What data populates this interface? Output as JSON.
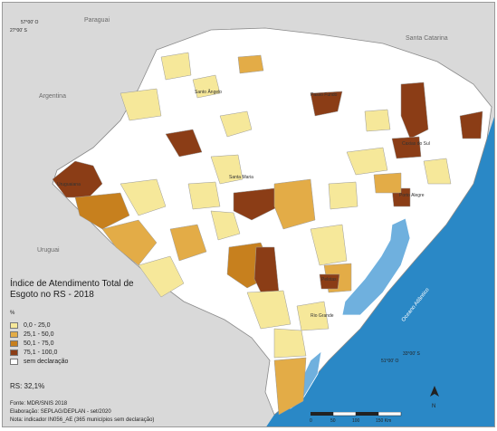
{
  "map": {
    "title": "Índice de Atendimento Total de Esgoto no RS - 2018",
    "unit": "%",
    "state_average": "RS: 32,1%",
    "colors": {
      "cat_0_25": "#f6e89a",
      "cat_25_50": "#e3ac47",
      "cat_50_75": "#c7801e",
      "cat_75_100": "#8b3d16",
      "no_data": "#ffffff",
      "neighbors": "#d9d9d9",
      "ocean": "#2a88c6",
      "lagoon": "#6fb0de"
    },
    "legend": [
      {
        "label": "0,0 - 25,0",
        "color": "#f6e89a"
      },
      {
        "label": "25,1 - 50,0",
        "color": "#e3ac47"
      },
      {
        "label": "50,1 - 75,0",
        "color": "#c7801e"
      },
      {
        "label": "75,1 - 100,0",
        "color": "#8b3d16"
      },
      {
        "label": "sem declaração",
        "color": "#ffffff"
      }
    ],
    "neighbors": {
      "paraguai": "Paraguai",
      "santa_catarina": "Santa Catarina",
      "argentina": "Argentina",
      "uruguai": "Uruguai"
    },
    "water": {
      "lagoa_dos_patos": "Lagoa dos Patos",
      "oceano": "Oceano Atlântico"
    },
    "places": {
      "santo_angelo": "Santo Ângelo",
      "passo_fundo": "Passo Fundo",
      "caxias_do_sul": "Caxias do Sul",
      "santa_maria": "Santa Maria",
      "porto_alegre": "Porto Alegre",
      "uruguaiana": "Uruguaiana",
      "pelotas": "Pelotas",
      "rio_grande": "Rio Grande"
    },
    "coords": {
      "top_lon": "57°00' O",
      "top_lat": "27°00' S",
      "bottom_lat": "33°00' S",
      "bottom_lon": "51°00' O"
    },
    "credits": {
      "fonte": "Fonte: MDR/SNIS 2018",
      "elaboracao": "Elaboração: SEPLAG/DEPLAN - set/2020",
      "nota": "Nota: indicador IN056_AE (365 municípios sem declaração)"
    },
    "scale": {
      "ticks": [
        "0",
        "50",
        "100",
        "150 Km"
      ]
    },
    "north": "N"
  }
}
